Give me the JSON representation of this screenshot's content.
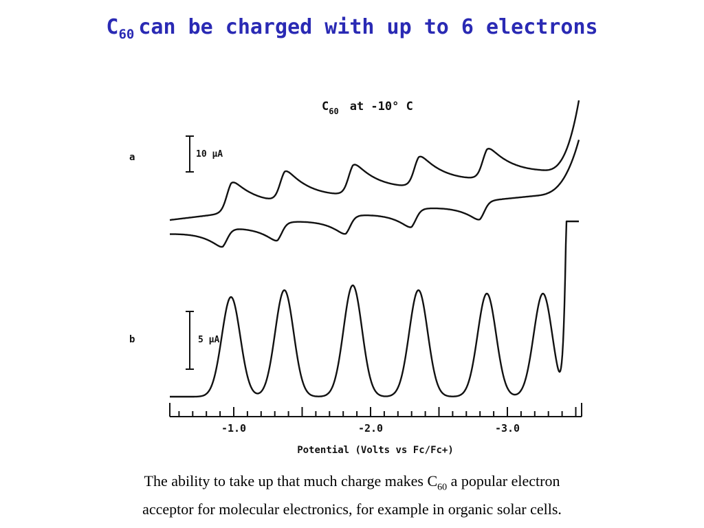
{
  "slide": {
    "title_pre": "C",
    "title_sub": "60",
    "title_post": "can be charged with up to 6 electrons",
    "caption_line1_pre": "The ability to take up that much charge makes C",
    "caption_line1_sub": "60",
    "caption_line1_post": " a popular electron",
    "caption_line2": "acceptor for molecular electronics, for example in organic solar cells."
  },
  "chart_data": {
    "type": "line",
    "title_pre": "C",
    "title_sub": "60",
    "title_post": "at  -10° C",
    "xlabel": "Potential (Volts vs Fc/Fc+)",
    "x_ticks": [
      "-1.0",
      "-2.0",
      "-3.0"
    ],
    "x_tick_values": [
      -1.0,
      -2.0,
      -3.0
    ],
    "xlim": [
      -0.5,
      -3.5
    ],
    "panels": [
      {
        "label": "a",
        "technique": "cyclic voltammogram",
        "scale_bar": "10 µA",
        "scale_bar_value_uA": 10,
        "reduction_peaks_V": [
          -0.98,
          -1.37,
          -1.87,
          -2.35,
          -2.85
        ],
        "oxidation_peaks_V": [
          -0.92,
          -1.32,
          -1.82,
          -2.3,
          -2.8
        ],
        "solvent_limit_V": -3.4
      },
      {
        "label": "b",
        "technique": "differential pulse voltammogram",
        "scale_bar": "5 µA",
        "scale_bar_value_uA": 5,
        "peaks_V": [
          -0.98,
          -1.37,
          -1.87,
          -2.35,
          -2.85,
          -3.26
        ],
        "solvent_limit_V": -3.5
      }
    ]
  }
}
